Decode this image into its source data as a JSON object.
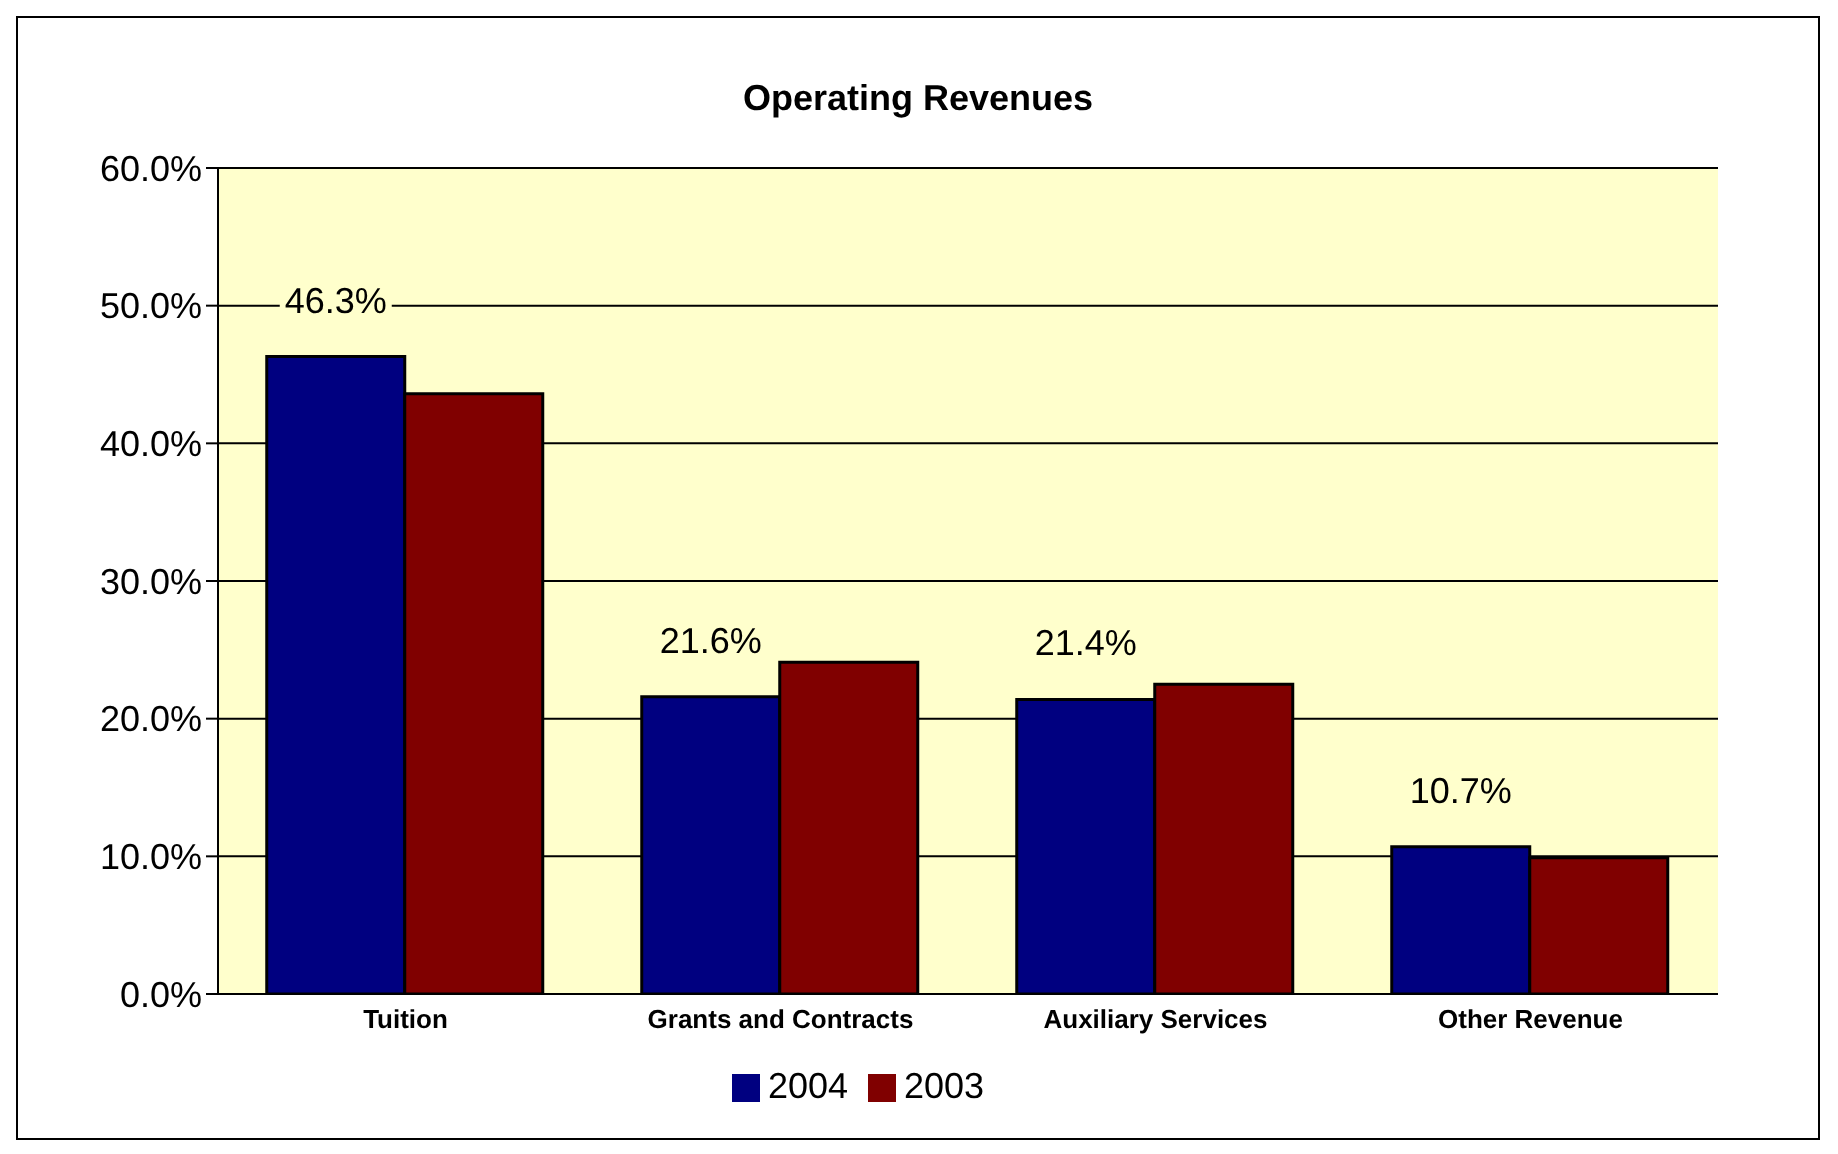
{
  "chart_data": {
    "type": "bar",
    "title": "Operating Revenues",
    "categories": [
      "Tuition",
      "Grants and Contracts",
      "Auxiliary Services",
      "Other Revenue"
    ],
    "series": [
      {
        "name": "2004",
        "color": "#000080",
        "values": [
          46.3,
          21.6,
          21.4,
          10.7
        ],
        "value_labels": [
          "46.3%",
          "21.6%",
          "21.4%",
          "10.7%"
        ]
      },
      {
        "name": "2003",
        "color": "#800000",
        "values": [
          43.6,
          24.1,
          22.5,
          9.9
        ]
      }
    ],
    "ylim": [
      0,
      60
    ],
    "yticks": [
      {
        "value": 0,
        "label": "0.0%"
      },
      {
        "value": 10,
        "label": "10.0%"
      },
      {
        "value": 20,
        "label": "20.0%"
      },
      {
        "value": 30,
        "label": "30.0%"
      },
      {
        "value": 40,
        "label": "40.0%"
      },
      {
        "value": 50,
        "label": "50.0%"
      },
      {
        "value": 60,
        "label": "60.0%"
      }
    ],
    "grid": "y",
    "legend": "bottom"
  }
}
